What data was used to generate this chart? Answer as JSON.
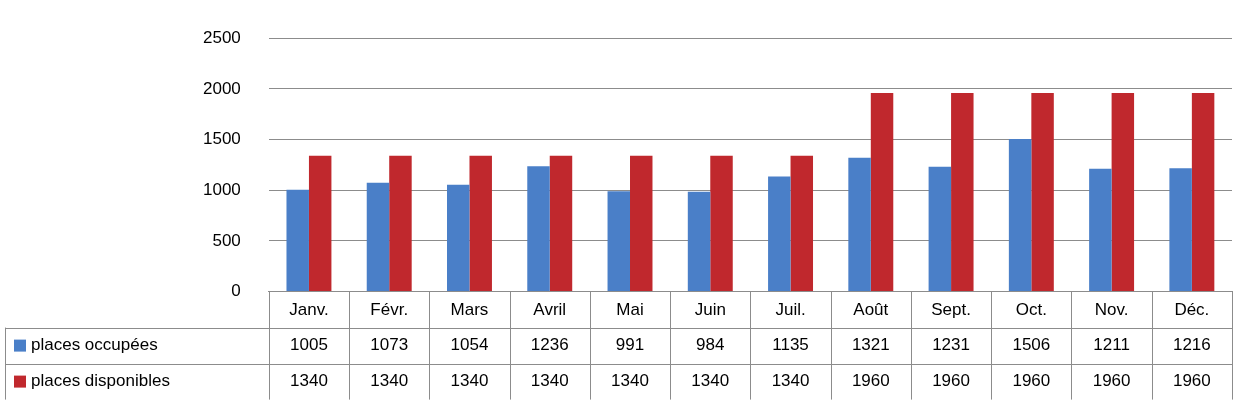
{
  "chart_data": {
    "type": "bar",
    "categories": [
      "Janv.",
      "Févr.",
      "Mars",
      "Avril",
      "Mai",
      "Juin",
      "Juil.",
      "Août",
      "Sept.",
      "Oct.",
      "Nov.",
      "Déc."
    ],
    "series": [
      {
        "name": "places occupées",
        "color": "#4a7fc8",
        "values": [
          1005,
          1073,
          1054,
          1236,
          991,
          984,
          1135,
          1321,
          1231,
          1506,
          1211,
          1216
        ]
      },
      {
        "name": "places disponibles",
        "color": "#c0282d",
        "values": [
          1340,
          1340,
          1340,
          1340,
          1340,
          1340,
          1340,
          1960,
          1960,
          1960,
          1960,
          1960
        ]
      }
    ],
    "ylim": [
      0,
      2500
    ],
    "yticks": [
      0,
      500,
      1000,
      1500,
      2000,
      2500
    ],
    "grid": "y",
    "legend": "bottom",
    "data_labels": true
  }
}
